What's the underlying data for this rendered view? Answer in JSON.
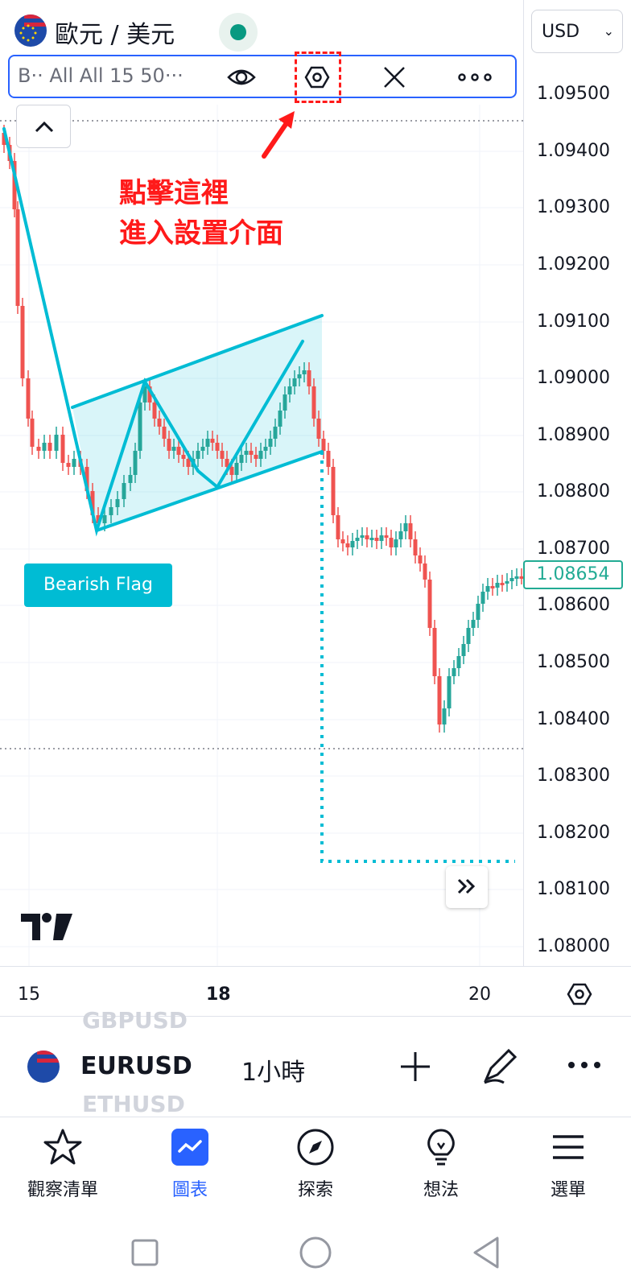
{
  "header": {
    "symbol_title": "歐元 / 美元",
    "currency": "USD",
    "icons": {
      "flag": "eu-us-flag-icon",
      "status": "live-status-dot"
    }
  },
  "drawing_toolbar": {
    "label": "B·· All All 15 50···",
    "icons": [
      "eye-icon",
      "settings-hexagon-icon",
      "close-icon",
      "more-icon"
    ]
  },
  "annotation": {
    "line1": "點擊這裡",
    "line2": "進入設置介面",
    "color": "#ff1a1a"
  },
  "price_axis": {
    "labels": [
      "1.09500",
      "1.09400",
      "1.09300",
      "1.09200",
      "1.09100",
      "1.09000",
      "1.08900",
      "1.08800",
      "1.08700",
      "1.08600",
      "1.08500",
      "1.08400",
      "1.08300",
      "1.08200",
      "1.08100",
      "1.08000"
    ],
    "current_price": "1.08654",
    "current_price_color": "#22ab94"
  },
  "pattern_label": "Bearish Flag",
  "pattern_color": "#00bcd4",
  "time_axis": {
    "labels": [
      "15",
      "18",
      "20"
    ],
    "bold_label": "18"
  },
  "symbol_strip": {
    "prev_symbol": "GBPUSD",
    "symbol": "EURUSD",
    "next_symbol": "ETHUSD",
    "interval": "1小時"
  },
  "bottom_nav": [
    {
      "label": "觀察清單",
      "icon": "star-icon",
      "active": false
    },
    {
      "label": "圖表",
      "icon": "chart-icon",
      "active": true
    },
    {
      "label": "探索",
      "icon": "compass-icon",
      "active": false
    },
    {
      "label": "想法",
      "icon": "lightbulb-icon",
      "active": false
    },
    {
      "label": "選單",
      "icon": "menu-icon",
      "active": false
    }
  ],
  "colors": {
    "up": "#26a69a",
    "down": "#ef5350",
    "accent": "#2962ff"
  }
}
